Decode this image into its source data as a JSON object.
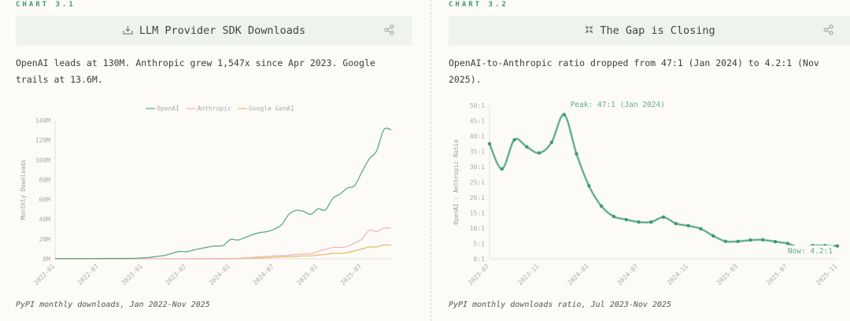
{
  "panels": [
    {
      "kicker": "CHART 3.1",
      "title": "LLM Provider SDK Downloads",
      "title_icon": "download-tray-icon",
      "description": "OpenAI leads at 130M. Anthropic grew 1,547x since Apr 2023. Google trails at 13.6M.",
      "caption": "PyPI monthly downloads, Jan 2022-Nov 2025"
    },
    {
      "kicker": "CHART 3.2",
      "title": "The Gap is Closing",
      "title_icon": "compress-arrows-icon",
      "description": "OpenAI-to-Anthropic ratio dropped from 47:1 (Jan 2024) to 4.2:1 (Nov 2025).",
      "caption": "PyPI monthly downloads ratio, Jul 2023-Nov 2025"
    }
  ],
  "chart_data": [
    {
      "type": "line",
      "title": "LLM Provider SDK Downloads",
      "ylabel": "Monthly Downloads",
      "xlabel": "",
      "x_start": "2022-01",
      "x_end": "2025-11",
      "x_ticks": [
        "2022-01",
        "2022-07",
        "2023-01",
        "2023-07",
        "2024-01",
        "2024-07",
        "2025-01",
        "2025-07"
      ],
      "y_ticks": [
        "0M",
        "20M",
        "40M",
        "60M",
        "80M",
        "100M",
        "120M",
        "140M"
      ],
      "ylim": [
        0,
        140
      ],
      "legend_position": "top",
      "series": [
        {
          "name": "OpenAI",
          "color": "#5aaa84",
          "values": [
            0.3,
            0.3,
            0.3,
            0.3,
            0.3,
            0.3,
            0.3,
            0.4,
            0.4,
            0.4,
            0.5,
            0.6,
            1,
            1.5,
            2.5,
            3.5,
            5.5,
            7.5,
            7.2,
            9,
            10.5,
            12,
            13,
            13.5,
            19.5,
            19,
            21.5,
            24.5,
            26.5,
            27.5,
            30,
            34.5,
            45,
            49,
            48,
            45,
            50.5,
            49.5,
            61,
            65.5,
            71.5,
            74,
            88,
            101,
            109,
            130.5,
            130.5
          ]
        },
        {
          "name": "Anthropic",
          "color": "#f4b4c0",
          "values": [
            0,
            0,
            0,
            0,
            0,
            0,
            0,
            0,
            0,
            0,
            0,
            0,
            0,
            0,
            0,
            0.02,
            0.05,
            0.1,
            0.1,
            0.15,
            0.2,
            0.2,
            0.3,
            0.3,
            0.4,
            0.5,
            1,
            1.5,
            2,
            2.5,
            3,
            3.3,
            3.7,
            4.5,
            5,
            5,
            7.5,
            9.5,
            11.5,
            11.5,
            12.5,
            16,
            20,
            29,
            27.5,
            31,
            31
          ]
        },
        {
          "name": "Google GenAI",
          "color": "#e6bf6a",
          "values": [
            0,
            0,
            0,
            0,
            0,
            0,
            0,
            0,
            0,
            0,
            0,
            0,
            0,
            0,
            0,
            0,
            0,
            0,
            0,
            0,
            0,
            0,
            0,
            0,
            0,
            0.1,
            0.5,
            0.8,
            1,
            1.2,
            1.5,
            2,
            2.2,
            2.6,
            3,
            3,
            3.8,
            4.5,
            5.5,
            5.5,
            6.5,
            8,
            10,
            12,
            12,
            14,
            13.6
          ]
        }
      ]
    },
    {
      "type": "line",
      "title": "The Gap is Closing",
      "ylabel": "OpenAI : Anthropic Ratio",
      "xlabel": "",
      "x_start": "2023-07",
      "x_end": "2025-11",
      "x_ticks": [
        "2023-07",
        "2023-11",
        "2024-03",
        "2024-07",
        "2024-11",
        "2025-03",
        "2025-07",
        "2025-11"
      ],
      "y_ticks": [
        "0:1",
        "5:1",
        "10:1",
        "15:1",
        "20:1",
        "25:1",
        "30:1",
        "35:1",
        "40:1",
        "45:1",
        "50:1"
      ],
      "ylim": [
        0,
        50
      ],
      "color": "#3f9a6f",
      "values": [
        37.5,
        29.3,
        38.8,
        36.5,
        34.5,
        38,
        47,
        34.2,
        23.8,
        17.2,
        13.8,
        12.8,
        12,
        12,
        13.6,
        11.5,
        10.8,
        9.8,
        7.5,
        5.7,
        5.7,
        6.1,
        6.2,
        5.6,
        5,
        3.7,
        4.3,
        4.3,
        4.2
      ],
      "annotations": [
        {
          "text": "Peak: 47:1 (Jan 2024)",
          "at": "2024-01"
        },
        {
          "text": "Now: 4.2:1",
          "at": "2025-11"
        }
      ]
    }
  ]
}
